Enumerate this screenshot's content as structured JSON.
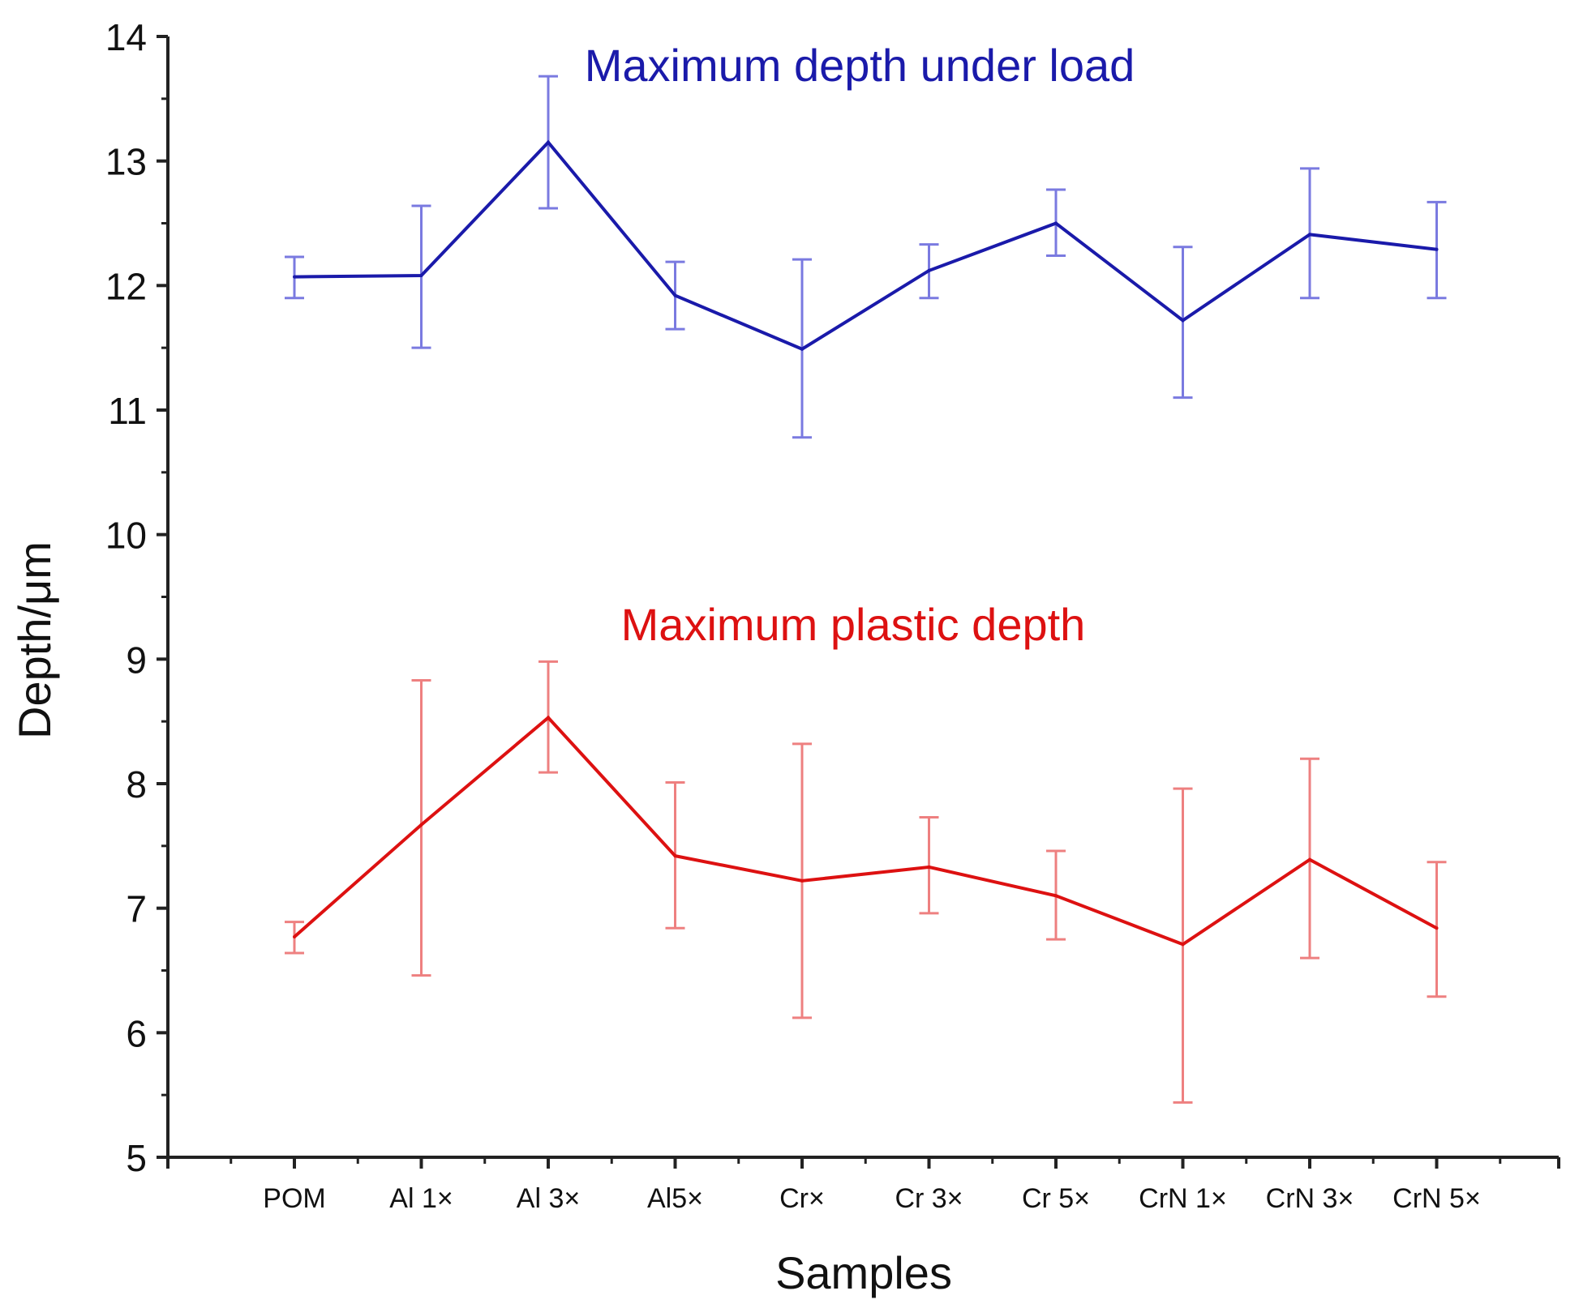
{
  "chart_data": {
    "type": "line",
    "title": "",
    "xlabel": "Samples",
    "ylabel": "Depth/μm",
    "ylim": [
      5,
      14
    ],
    "yticks": [
      5,
      6,
      7,
      8,
      9,
      10,
      11,
      12,
      13,
      14
    ],
    "categories": [
      "POM",
      "Al 1×",
      "Al 3×",
      "Al5×",
      "Cr×",
      "Cr 3×",
      "Cr 5×",
      "CrN 1×",
      "CrN 3×",
      "CrN 5×"
    ],
    "grid": false,
    "series": [
      {
        "name": "Maximum depth under load",
        "color": "#1a1aaa",
        "error_color": "#7a7ae0",
        "values": [
          12.07,
          12.08,
          13.15,
          11.92,
          11.49,
          12.12,
          12.5,
          11.72,
          12.41,
          12.29
        ],
        "error_low": [
          11.9,
          11.5,
          12.62,
          11.65,
          10.78,
          11.9,
          12.24,
          11.1,
          11.9,
          11.9
        ],
        "error_high": [
          12.23,
          12.64,
          13.68,
          12.19,
          12.21,
          12.33,
          12.77,
          12.31,
          12.94,
          12.67
        ]
      },
      {
        "name": "Maximum plastic depth",
        "color": "#dd1111",
        "error_color": "#ee8080",
        "values": [
          6.77,
          7.67,
          8.53,
          7.42,
          7.22,
          7.33,
          7.1,
          6.71,
          7.39,
          6.84
        ],
        "error_low": [
          6.64,
          6.46,
          8.09,
          6.84,
          6.12,
          6.96,
          6.75,
          5.44,
          6.6,
          6.29
        ],
        "error_high": [
          6.89,
          8.83,
          8.98,
          8.01,
          8.32,
          7.73,
          7.46,
          7.96,
          8.2,
          7.37
        ]
      }
    ],
    "annotations": [
      {
        "text": "Maximum depth under load",
        "color": "#1a1aaa",
        "series": 0
      },
      {
        "text": "Maximum plastic depth",
        "color": "#dd1111",
        "series": 1
      }
    ]
  }
}
